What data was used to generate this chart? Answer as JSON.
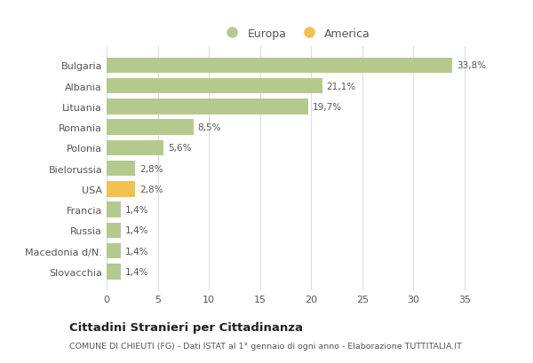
{
  "countries": [
    "Bulgaria",
    "Albania",
    "Lituania",
    "Romania",
    "Polonia",
    "Bielorussia",
    "USA",
    "Francia",
    "Russia",
    "Macedonia d/N.",
    "Slovacchia"
  ],
  "values": [
    33.8,
    21.1,
    19.7,
    8.5,
    5.6,
    2.8,
    2.8,
    1.4,
    1.4,
    1.4,
    1.4
  ],
  "labels": [
    "33,8%",
    "21,1%",
    "19,7%",
    "8,5%",
    "5,6%",
    "2,8%",
    "2,8%",
    "1,4%",
    "1,4%",
    "1,4%",
    "1,4%"
  ],
  "colors": [
    "#b5c98e",
    "#b5c98e",
    "#b5c98e",
    "#b5c98e",
    "#b5c98e",
    "#b5c98e",
    "#f0c050",
    "#b5c98e",
    "#b5c98e",
    "#b5c98e",
    "#b5c98e"
  ],
  "europa_color": "#b5c98e",
  "america_color": "#f0c050",
  "xlim": [
    0,
    37
  ],
  "xticks": [
    0,
    5,
    10,
    15,
    20,
    25,
    30,
    35
  ],
  "title": "Cittadini Stranieri per Cittadinanza",
  "subtitle": "COMUNE DI CHIEUTI (FG) - Dati ISTAT al 1° gennaio di ogni anno - Elaborazione TUTTITALIA.IT",
  "legend_europa": "Europa",
  "legend_america": "America",
  "bar_height": 0.75,
  "background_color": "#ffffff",
  "grid_color": "#dddddd",
  "text_color": "#555555",
  "title_color": "#222222"
}
